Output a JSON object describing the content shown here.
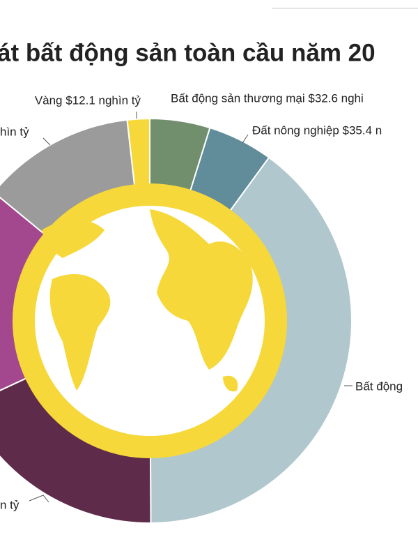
{
  "chart_data": {
    "type": "donut",
    "title": "át bất động sản toàn cầu năm 20",
    "categories": [
      "Bất động sản thương mại $32.6 nghi",
      "Đất nông nghiệp $35.4 n",
      "Bất động",
      "n tỷ",
      null,
      "hìn tỷ",
      "Vàng $12.1 nghìn tỷ"
    ],
    "values": [
      32.6,
      35.4,
      270,
      123,
      121,
      83,
      12.1
    ],
    "colors": [
      "#718f6d",
      "#618c99",
      "#afc7cd",
      "#5f2b4b",
      "#a3478f",
      "#9b9b9b",
      "#f6d83a"
    ]
  }
}
